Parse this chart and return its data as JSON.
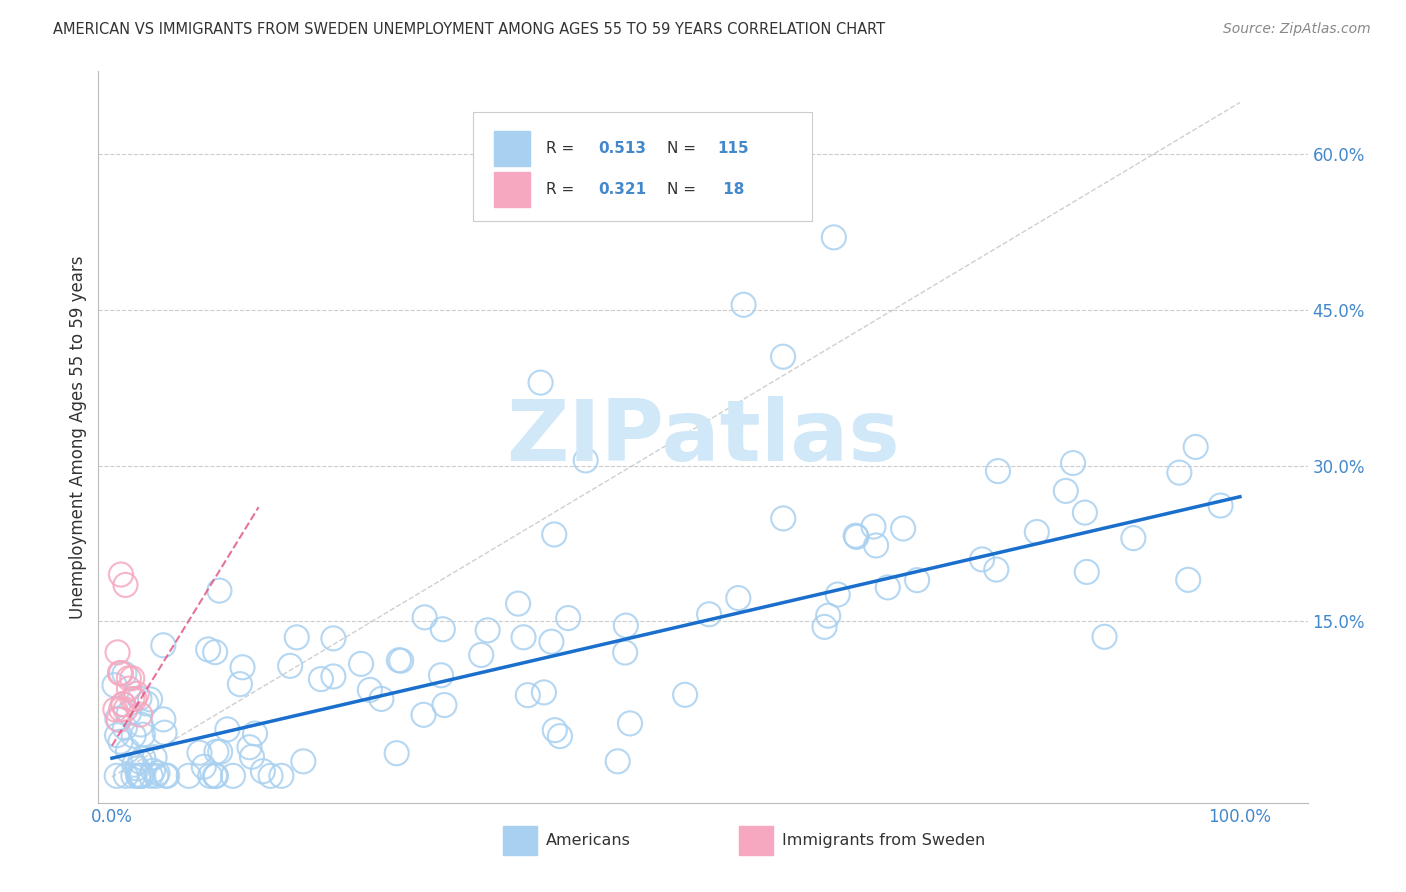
{
  "title": "AMERICAN VS IMMIGRANTS FROM SWEDEN UNEMPLOYMENT AMONG AGES 55 TO 59 YEARS CORRELATION CHART",
  "source": "Source: ZipAtlas.com",
  "ylabel": "Unemployment Among Ages 55 to 59 years",
  "americans_R": 0.513,
  "americans_N": 115,
  "sweden_R": 0.321,
  "sweden_N": 18,
  "americans_color": "#a8d0f0",
  "sweden_color": "#f5a8c0",
  "trendline_americans_color": "#1a6fcc",
  "trendline_sweden_color": "#e05080",
  "scatter_size": 300,
  "background_color": "#ffffff",
  "grid_color": "#cccccc",
  "tick_color": "#4488cc",
  "watermark_color": "#d0e8f8",
  "title_color": "#333333",
  "source_color": "#888888",
  "ylabel_color": "#333333"
}
